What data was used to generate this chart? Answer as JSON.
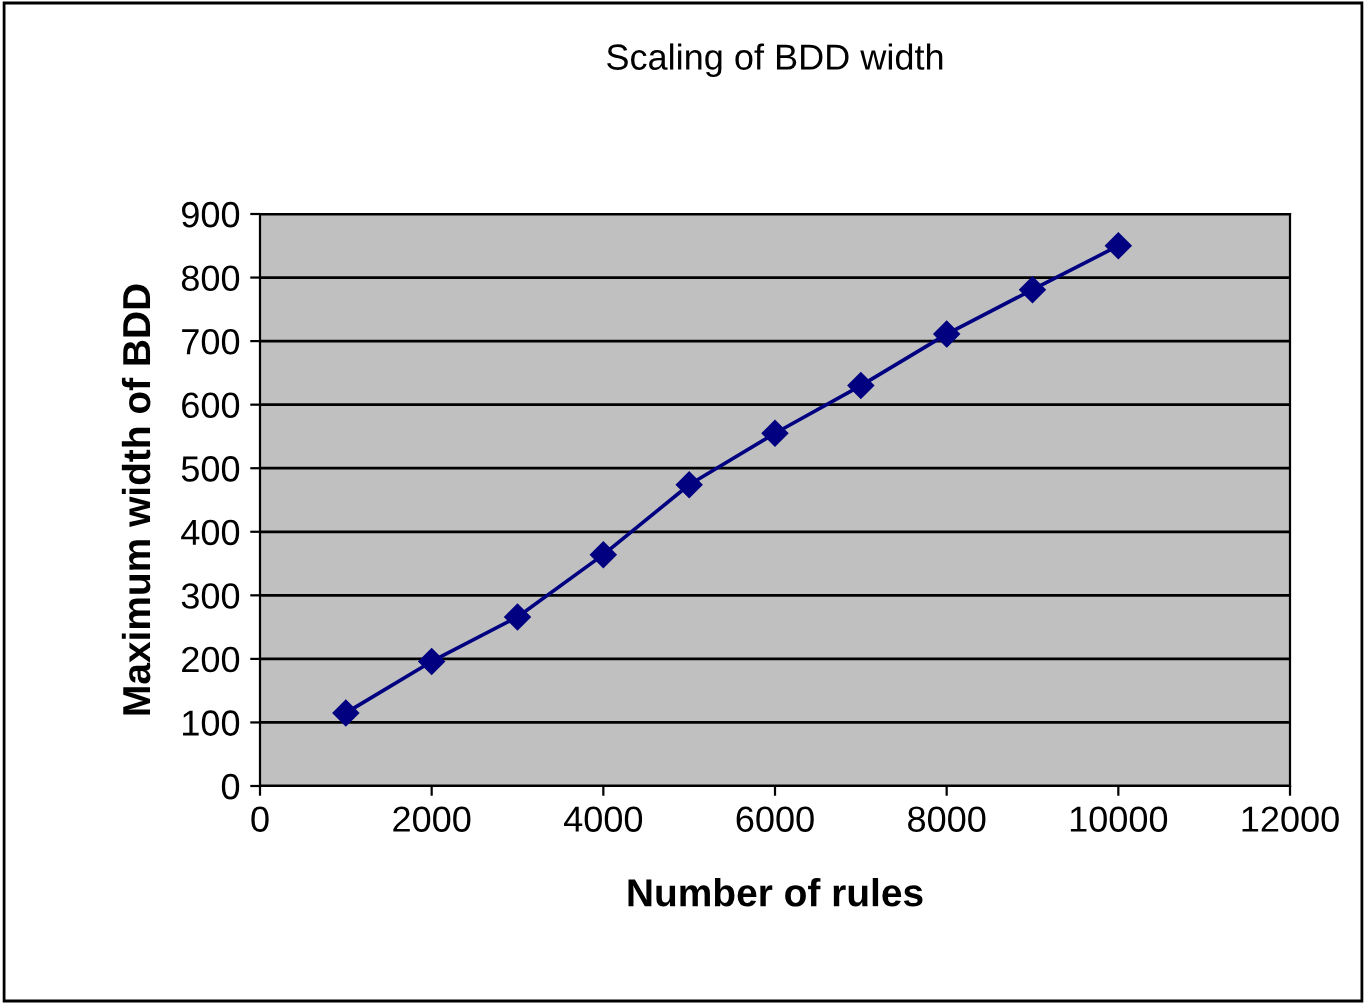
{
  "chart_data": {
    "type": "line",
    "title": "Scaling of BDD width",
    "xlabel": "Number of rules",
    "ylabel": "Maximum width of BDD",
    "x": [
      1000,
      2000,
      3000,
      4000,
      5000,
      6000,
      7000,
      8000,
      9000,
      10000
    ],
    "series": [
      {
        "color": "#000080",
        "values": [
          115,
          196,
          266,
          364,
          474,
          555,
          630,
          711,
          781,
          850
        ]
      }
    ],
    "xlim": [
      0,
      12000
    ],
    "xticks": [
      0,
      2000,
      4000,
      6000,
      8000,
      10000,
      12000
    ],
    "ylim": [
      0,
      900
    ],
    "yticks": [
      0,
      100,
      200,
      300,
      400,
      500,
      600,
      700,
      800,
      900
    ],
    "grid": "y",
    "legend": false,
    "marker": "diamond",
    "line_style": "solid"
  }
}
